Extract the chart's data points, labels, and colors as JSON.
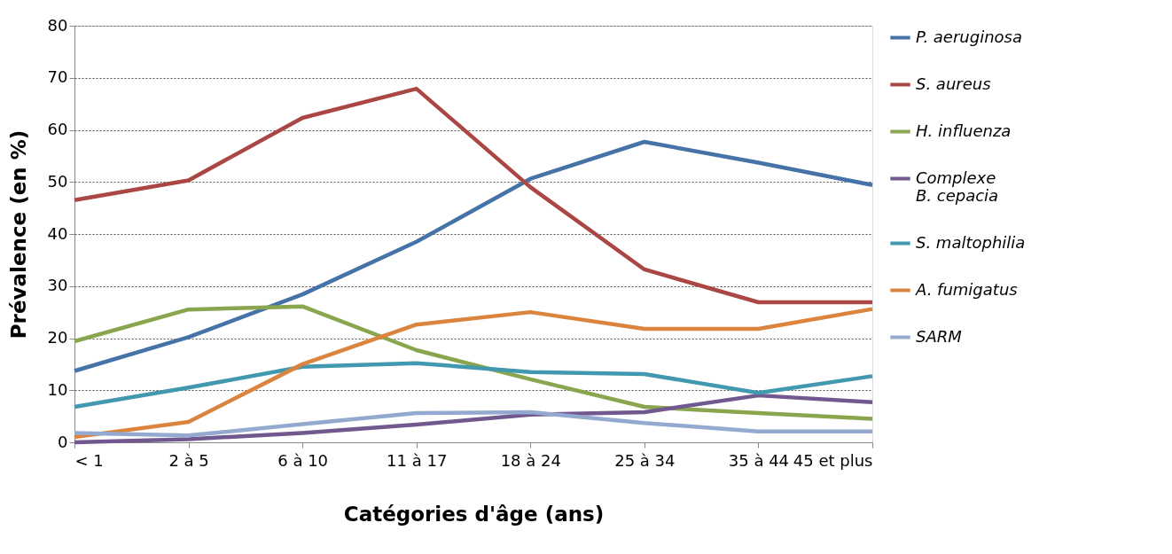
{
  "chart_data": {
    "type": "line",
    "xlabel": "Catégories d'âge (ans)",
    "ylabel": "Prévalence (en %)",
    "categories": [
      "< 1",
      "2 à 5",
      "6 à 10",
      "11 à 17",
      "18 à 24",
      "25 à 34",
      "35 à 44",
      "45 et plus"
    ],
    "ylim": [
      0,
      80
    ],
    "yticks": [
      0,
      10,
      20,
      30,
      40,
      50,
      60,
      70,
      80
    ],
    "grid": "y",
    "legend": "right",
    "marker": "none",
    "line_style": "solid",
    "series": [
      {
        "name": "P. aeruginosa",
        "color": "#4572a7",
        "values": [
          13.7,
          20.2,
          28.4,
          38.5,
          50.6,
          57.7,
          53.7,
          49.4
        ]
      },
      {
        "name": "S. aureus",
        "color": "#aa4643",
        "values": [
          46.5,
          50.3,
          62.3,
          67.9,
          49,
          33.2,
          26.9,
          26.9
        ]
      },
      {
        "name": "H. influenza",
        "color": "#89a54e",
        "values": [
          19.4,
          25.5,
          26.1,
          17.7,
          12.1,
          6.8,
          5.6,
          4.5
        ]
      },
      {
        "name": "Complexe\nB. cepacia",
        "color": "#71588f",
        "values": [
          0,
          0.6,
          1.8,
          3.4,
          5.3,
          5.8,
          9.0,
          7.7
        ]
      },
      {
        "name": "S. maltophilia",
        "color": "#4198af",
        "values": [
          6.8,
          10.5,
          14.5,
          15.2,
          13.5,
          13.1,
          9.5,
          12.7
        ]
      },
      {
        "name": "A. fumigatus",
        "color": "#db843d",
        "values": [
          1,
          3.9,
          15,
          22.6,
          25,
          21.8,
          21.8,
          25.6
        ]
      },
      {
        "name": "SARM",
        "color": "#93a9cf",
        "values": [
          1.8,
          1.3,
          3.5,
          5.6,
          5.8,
          3.7,
          2.1,
          2.1
        ]
      }
    ]
  }
}
